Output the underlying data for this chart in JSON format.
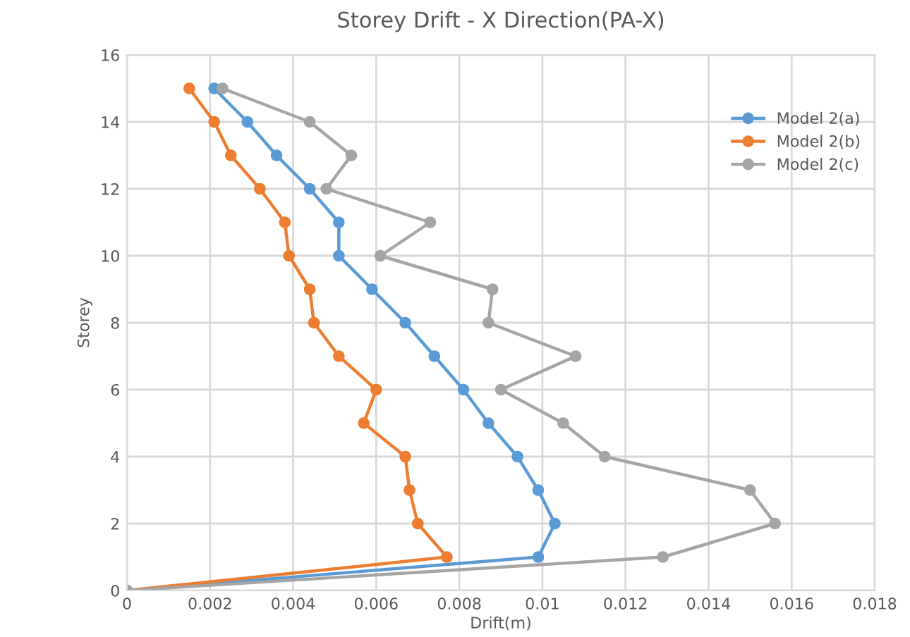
{
  "chart_data": {
    "type": "line",
    "title": "Storey Drift - X Direction(PA-X)",
    "xlabel": "Drift(m)",
    "ylabel": "Storey",
    "series": [
      {
        "name": "Model 2(a)",
        "color": "#5b9bd5",
        "x": [
          0,
          0.0099,
          0.0103,
          0.0099,
          0.0094,
          0.0087,
          0.0081,
          0.0074,
          0.0067,
          0.0059,
          0.0051,
          0.0051,
          0.0044,
          0.0036,
          0.0029,
          0.0021
        ],
        "values": [
          0,
          1,
          2,
          3,
          4,
          5,
          6,
          7,
          8,
          9,
          10,
          11,
          12,
          13,
          14,
          15
        ]
      },
      {
        "name": "Model 2(b)",
        "color": "#ed7d31",
        "x": [
          0,
          0.0077,
          0.007,
          0.0068,
          0.0067,
          0.0057,
          0.006,
          0.0051,
          0.0045,
          0.0044,
          0.0039,
          0.0038,
          0.0032,
          0.0025,
          0.0021,
          0.0015
        ],
        "values": [
          0,
          1,
          2,
          3,
          4,
          5,
          6,
          7,
          8,
          9,
          10,
          11,
          12,
          13,
          14,
          15
        ]
      },
      {
        "name": "Model 2(c)",
        "color": "#a5a5a5",
        "x": [
          0,
          0.0129,
          0.0156,
          0.015,
          0.0115,
          0.0105,
          0.009,
          0.0108,
          0.0087,
          0.0088,
          0.0061,
          0.0073,
          0.0048,
          0.0054,
          0.0044,
          0.0023
        ],
        "values": [
          0,
          1,
          2,
          3,
          4,
          5,
          6,
          7,
          8,
          9,
          10,
          11,
          12,
          13,
          14,
          15
        ]
      }
    ],
    "xlim": [
      0,
      0.018
    ],
    "xticks": [
      0,
      0.002,
      0.004,
      0.006,
      0.008,
      0.01,
      0.012,
      0.014,
      0.016,
      0.018
    ],
    "ylim": [
      0,
      16
    ],
    "yticks": [
      0,
      2,
      4,
      6,
      8,
      10,
      12,
      14,
      16
    ],
    "grid": true,
    "legend": "top right",
    "marker": "circle",
    "line_style": "solid"
  }
}
